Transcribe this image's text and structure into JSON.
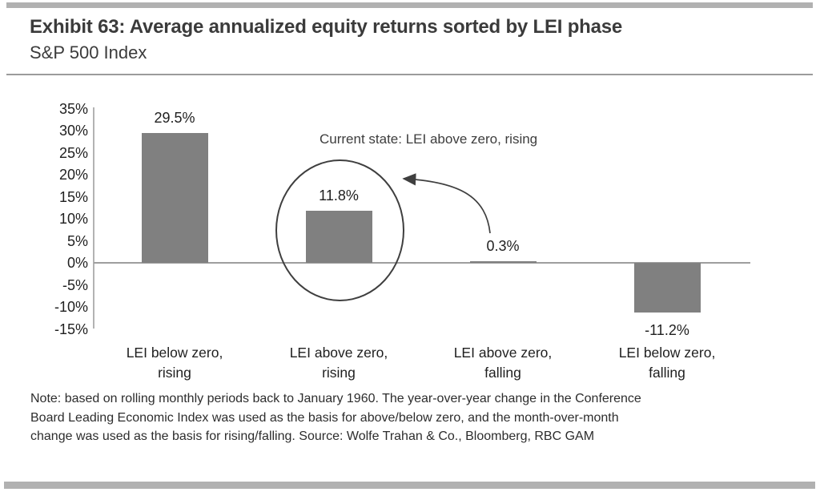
{
  "header": {
    "title": "Exhibit 63: Average annualized equity returns sorted by LEI phase",
    "subtitle": "S&P 500 Index"
  },
  "chart_data": {
    "type": "bar",
    "title": "Exhibit 63: Average annualized equity returns sorted by LEI phase",
    "subtitle": "S&P 500 Index",
    "categories": [
      [
        "LEI below zero,",
        "rising"
      ],
      [
        "LEI above zero,",
        "rising"
      ],
      [
        "LEI above zero,",
        "falling"
      ],
      [
        "LEI below zero,",
        "falling"
      ]
    ],
    "values": [
      29.5,
      11.8,
      0.3,
      -11.2
    ],
    "value_labels": [
      "29.5%",
      "11.8%",
      "0.3%",
      "-11.2%"
    ],
    "ytick_values": [
      35,
      30,
      25,
      20,
      15,
      10,
      5,
      0,
      -5,
      -10,
      -15
    ],
    "ytick_labels": [
      "35%",
      "30%",
      "25%",
      "20%",
      "15%",
      "10%",
      "5%",
      "0%",
      "-5%",
      "-10%",
      "-15%"
    ],
    "ylim": [
      -15,
      35
    ],
    "xlabel": "",
    "ylabel": "",
    "grid": false,
    "legend": null,
    "bar_color": "#808080",
    "annotation": "Current state: LEI above zero, rising",
    "highlighted_category_index": 1
  },
  "note": {
    "lines": [
      "Note: based on rolling monthly periods back to January 1960. The year-over-year change in the Conference",
      "Board Leading Economic Index was used as the basis for above/below zero, and the month-over-month",
      "change was used as the basis for rising/falling. Source: Wolfe Trahan & Co., Bloomberg, RBC GAM"
    ]
  }
}
